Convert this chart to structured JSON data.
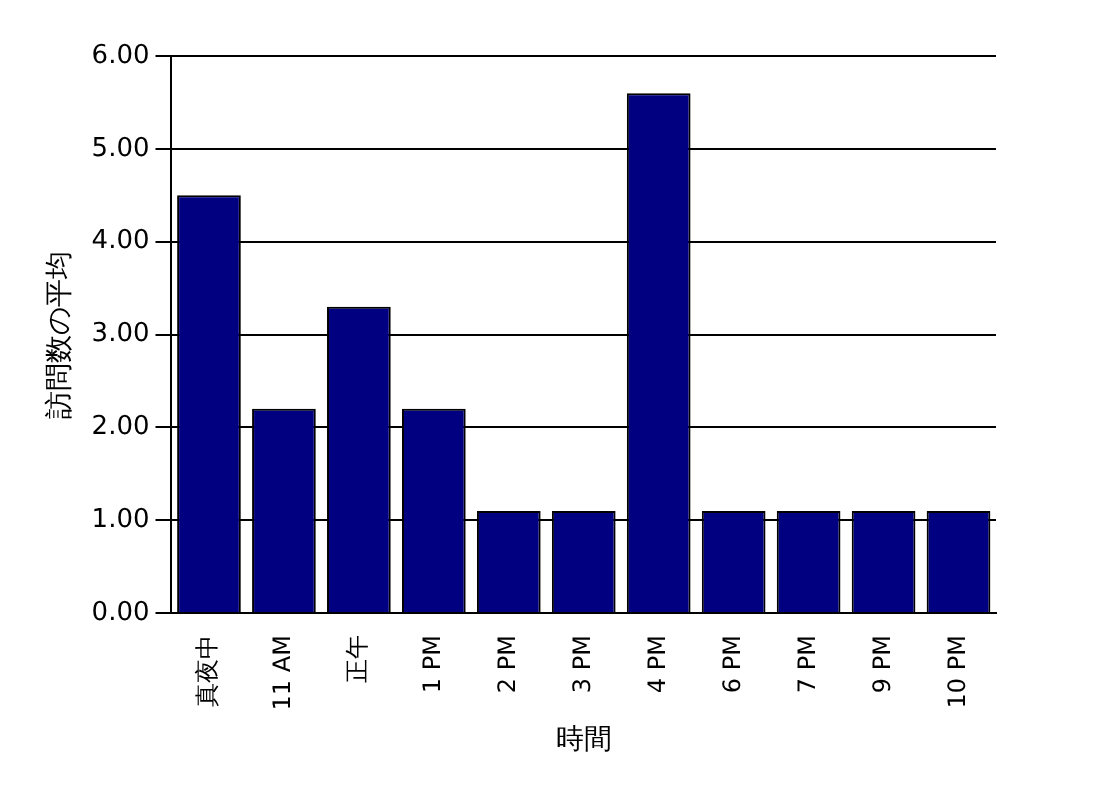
{
  "chart_data": {
    "type": "bar",
    "xlabel": "時間",
    "ylabel": "訪問数の平均",
    "categories": [
      "真夜中",
      "11 AM",
      "正午",
      "1 PM",
      "2 PM",
      "3 PM",
      "4 PM",
      "6 PM",
      "7 PM",
      "9 PM",
      "10 PM"
    ],
    "values": [
      4.5,
      2.2,
      3.3,
      2.2,
      1.1,
      1.1,
      5.6,
      1.1,
      1.1,
      1.1,
      1.1
    ],
    "color": "#000080",
    "ylim": [
      0,
      6
    ],
    "yticks": [
      {
        "value": 0,
        "label": "0.00"
      },
      {
        "value": 1,
        "label": "1.00"
      },
      {
        "value": 2,
        "label": "2.00"
      },
      {
        "value": 3,
        "label": "3.00"
      },
      {
        "value": 4,
        "label": "4.00"
      },
      {
        "value": 5,
        "label": "5.00"
      },
      {
        "value": 6,
        "label": "6.00"
      }
    ],
    "grid": "y",
    "legend": false
  }
}
